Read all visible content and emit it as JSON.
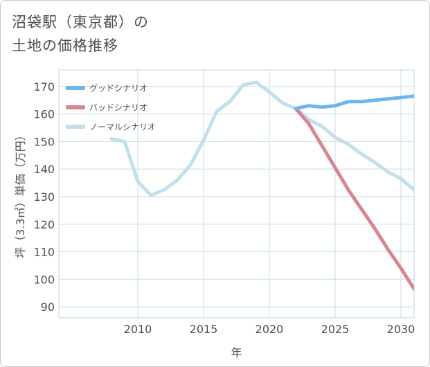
{
  "page": {
    "title_line1": "沼袋駅（東京都）の",
    "title_line2": "土地の価格推移"
  },
  "colors": {
    "good": "#6cb6ee",
    "bad": "#d9858e",
    "normal": "#c2e0ec",
    "grid": "#cde3ee",
    "plot_border": "#bcd6e4",
    "text": "#4d4d4d"
  },
  "chart_data": {
    "type": "line",
    "title": "沼袋駅（東京都）の土地の価格推移",
    "xlabel": "年",
    "ylabel": "坪（3.3㎡）単価（万円）",
    "xlim": [
      2004,
      2031
    ],
    "ylim": [
      86,
      176
    ],
    "x_ticks": [
      2010,
      2015,
      2020,
      2025,
      2030
    ],
    "y_ticks": [
      90,
      100,
      110,
      120,
      130,
      140,
      150,
      160,
      170
    ],
    "grid": true,
    "legend_position": "top-left",
    "series": [
      {
        "name": "ノーマルシナリオ",
        "color": "#c2e0ec",
        "x": [
          2008,
          2009,
          2010,
          2011,
          2012,
          2013,
          2014,
          2015,
          2016,
          2017,
          2018,
          2019,
          2020,
          2021,
          2022,
          2023,
          2024,
          2025,
          2026,
          2027,
          2028,
          2029,
          2030,
          2031
        ],
        "values": [
          151,
          150,
          135.5,
          130.5,
          132.5,
          136,
          141.5,
          150.5,
          161,
          164.5,
          170.5,
          171.5,
          168,
          164,
          162,
          158,
          155.5,
          151.5,
          149,
          145.5,
          142.5,
          139,
          136.5,
          132.5
        ]
      },
      {
        "name": "バッドシナリオ",
        "color": "#d9858e",
        "x": [
          2022,
          2023,
          2024,
          2025,
          2026,
          2027,
          2028,
          2029,
          2030,
          2031
        ],
        "values": [
          162,
          156.5,
          148.5,
          140.5,
          132.5,
          125.5,
          118.5,
          111,
          104,
          96.5
        ]
      },
      {
        "name": "グッドシナリオ",
        "color": "#6cb6ee",
        "x": [
          2022,
          2023,
          2024,
          2025,
          2026,
          2027,
          2028,
          2029,
          2030,
          2031
        ],
        "values": [
          162,
          163,
          162.5,
          163,
          164.5,
          164.5,
          165,
          165.5,
          166,
          166.5
        ]
      }
    ],
    "legend": [
      "グッドシナリオ",
      "バッドシナリオ",
      "ノーマルシナリオ"
    ]
  }
}
